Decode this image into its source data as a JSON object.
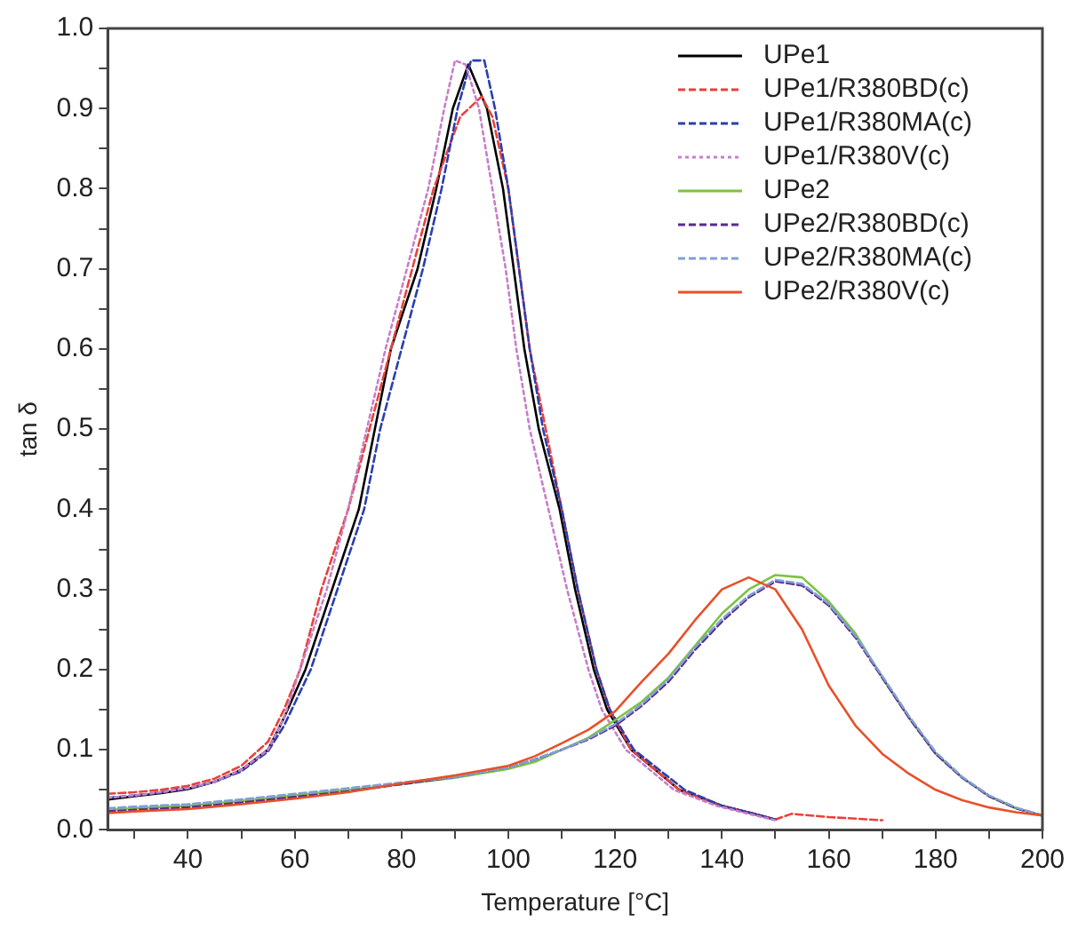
{
  "chart_data": {
    "type": "line",
    "xlabel": "Temperature [°C]",
    "ylabel": "tan δ",
    "xlim": [
      25,
      200
    ],
    "ylim": [
      0,
      1.0
    ],
    "xticks": [
      {
        "value": 30,
        "label": null
      },
      40,
      {
        "value": 50,
        "label": null
      },
      60,
      {
        "value": 70,
        "label": null
      },
      80,
      {
        "value": 90,
        "label": null
      },
      100,
      {
        "value": 110,
        "label": null
      },
      120,
      {
        "value": 130,
        "label": null
      },
      140,
      {
        "value": 150,
        "label": null
      },
      160,
      {
        "value": 170,
        "label": null
      },
      180,
      {
        "value": 190,
        "label": null
      },
      200
    ],
    "yticks": [
      {
        "value": 0,
        "label": "0.0"
      },
      {
        "value": 0.05,
        "label": null
      },
      0.1,
      {
        "value": 0.15,
        "label": null
      },
      0.2,
      {
        "value": 0.25,
        "label": null
      },
      0.3,
      {
        "value": 0.35,
        "label": null
      },
      0.4,
      {
        "value": 0.45,
        "label": null
      },
      0.5,
      {
        "value": 0.55,
        "label": null
      },
      0.6,
      {
        "value": 0.65,
        "label": null
      },
      0.7,
      {
        "value": 0.75,
        "label": null
      },
      0.8,
      {
        "value": 0.85,
        "label": null
      },
      0.9,
      {
        "value": 0.95,
        "label": null
      },
      {
        "value": 1,
        "label": "1.0"
      }
    ],
    "grid": false,
    "legend": "top right",
    "marker": "none",
    "series": [
      {
        "name": "UPe1",
        "color": "#000000",
        "line_style": "solid",
        "x": [
          25,
          30,
          35,
          40,
          45,
          50,
          55,
          58,
          62,
          67,
          72,
          75,
          78,
          83,
          86.5,
          89.6,
          92.5,
          96,
          99,
          101,
          103,
          105.7,
          109.6,
          112.5,
          116,
          118.5,
          123,
          132,
          140,
          146,
          150
        ],
        "values": [
          0.038,
          0.042,
          0.046,
          0.051,
          0.06,
          0.075,
          0.1,
          0.14,
          0.2,
          0.3,
          0.4,
          0.5,
          0.6,
          0.7,
          0.8,
          0.9,
          0.955,
          0.9,
          0.8,
          0.7,
          0.6,
          0.5,
          0.4,
          0.3,
          0.2,
          0.15,
          0.1,
          0.05,
          0.03,
          0.02,
          0.013
        ]
      },
      {
        "name": "UPe1/R380BD(c)",
        "color": "#e8413c",
        "line_style": "dashed",
        "x": [
          25,
          30,
          35,
          40,
          45,
          50,
          55,
          58,
          61,
          65,
          70,
          74,
          78,
          82,
          86,
          91,
          95,
          97,
          100,
          102,
          104,
          107,
          110,
          113,
          116.5,
          119,
          123,
          132,
          140,
          150,
          153,
          160,
          170
        ],
        "values": [
          0.045,
          0.047,
          0.05,
          0.055,
          0.064,
          0.08,
          0.11,
          0.15,
          0.2,
          0.3,
          0.4,
          0.5,
          0.6,
          0.7,
          0.8,
          0.89,
          0.915,
          0.89,
          0.8,
          0.7,
          0.6,
          0.5,
          0.4,
          0.3,
          0.2,
          0.15,
          0.1,
          0.05,
          0.03,
          0.013,
          0.02,
          0.016,
          0.012
        ]
      },
      {
        "name": "UPe1/R380MA(c)",
        "color": "#2b3fae",
        "line_style": "dashed",
        "x": [
          25,
          30,
          35,
          40,
          45,
          50,
          55,
          58,
          63,
          68,
          73,
          76,
          80,
          84,
          87.5,
          90.5,
          93,
          95.5,
          97.5,
          100,
          102,
          104,
          106.5,
          110,
          113,
          116.5,
          119,
          123.5,
          133,
          140,
          146,
          150
        ],
        "values": [
          0.04,
          0.043,
          0.047,
          0.052,
          0.06,
          0.073,
          0.098,
          0.13,
          0.2,
          0.3,
          0.4,
          0.5,
          0.6,
          0.7,
          0.8,
          0.9,
          0.96,
          0.96,
          0.9,
          0.8,
          0.7,
          0.6,
          0.5,
          0.4,
          0.3,
          0.2,
          0.15,
          0.1,
          0.05,
          0.03,
          0.02,
          0.013
        ]
      },
      {
        "name": "UPe1/R380V(c)",
        "color": "#c77fc7",
        "line_style": "dotted",
        "x": [
          25,
          30,
          35,
          40,
          45,
          50,
          55,
          58,
          61,
          66,
          70,
          73.5,
          77,
          81,
          85,
          88,
          90,
          92,
          94.5,
          97,
          99.5,
          101.5,
          104,
          107.5,
          111,
          115,
          117.5,
          122,
          131,
          139,
          145,
          150
        ],
        "values": [
          0.04,
          0.043,
          0.047,
          0.052,
          0.06,
          0.075,
          0.1,
          0.14,
          0.2,
          0.3,
          0.4,
          0.5,
          0.6,
          0.7,
          0.8,
          0.9,
          0.96,
          0.955,
          0.9,
          0.8,
          0.7,
          0.6,
          0.5,
          0.4,
          0.3,
          0.2,
          0.15,
          0.1,
          0.05,
          0.03,
          0.02,
          0.012
        ]
      },
      {
        "name": "UPe2",
        "color": "#7dc242",
        "line_style": "solid",
        "x": [
          25,
          30,
          40,
          50,
          60,
          70,
          80,
          90,
          100,
          105,
          110,
          115,
          120,
          125,
          130,
          135,
          140,
          145,
          150,
          155,
          160,
          165,
          170,
          175,
          180,
          185,
          190,
          195,
          200
        ],
        "values": [
          0.025,
          0.027,
          0.03,
          0.036,
          0.043,
          0.05,
          0.057,
          0.065,
          0.076,
          0.085,
          0.1,
          0.115,
          0.137,
          0.16,
          0.19,
          0.23,
          0.27,
          0.3,
          0.318,
          0.315,
          0.285,
          0.245,
          0.19,
          0.14,
          0.095,
          0.065,
          0.042,
          0.027,
          0.018
        ]
      },
      {
        "name": "UPe2/R380BD(c)",
        "color": "#5b2a8e",
        "line_style": "dashed",
        "x": [
          25,
          30,
          40,
          50,
          60,
          70,
          80,
          90,
          100,
          105,
          110,
          115,
          120,
          125,
          130,
          135,
          140,
          145,
          150,
          155,
          160,
          165,
          170,
          175,
          180,
          185,
          190,
          195,
          200
        ],
        "values": [
          0.023,
          0.025,
          0.028,
          0.034,
          0.041,
          0.048,
          0.057,
          0.066,
          0.078,
          0.088,
          0.1,
          0.113,
          0.13,
          0.155,
          0.185,
          0.225,
          0.26,
          0.29,
          0.31,
          0.305,
          0.28,
          0.24,
          0.19,
          0.14,
          0.095,
          0.065,
          0.042,
          0.027,
          0.018
        ]
      },
      {
        "name": "UPe2/R380MA(c)",
        "color": "#7f9fd8",
        "line_style": "dashed",
        "x": [
          25,
          30,
          40,
          50,
          60,
          70,
          80,
          90,
          100,
          105,
          110,
          115,
          120,
          125,
          130,
          135,
          140,
          145,
          150,
          155,
          160,
          165,
          170,
          175,
          180,
          185,
          190,
          195,
          200
        ],
        "values": [
          0.027,
          0.029,
          0.032,
          0.038,
          0.045,
          0.052,
          0.059,
          0.066,
          0.078,
          0.088,
          0.1,
          0.114,
          0.132,
          0.157,
          0.188,
          0.228,
          0.263,
          0.292,
          0.312,
          0.307,
          0.282,
          0.242,
          0.192,
          0.142,
          0.097,
          0.066,
          0.043,
          0.028,
          0.018
        ]
      },
      {
        "name": "UPe2/R380V(c)",
        "color": "#e8502a",
        "line_style": "solid",
        "x": [
          25,
          30,
          40,
          50,
          60,
          70,
          80,
          90,
          100,
          105,
          110,
          115,
          120,
          125,
          130,
          135,
          140,
          145,
          150,
          155,
          160,
          165,
          170,
          175,
          180,
          185,
          190,
          195,
          200
        ],
        "values": [
          0.021,
          0.023,
          0.026,
          0.032,
          0.039,
          0.047,
          0.058,
          0.068,
          0.08,
          0.092,
          0.108,
          0.125,
          0.148,
          0.185,
          0.22,
          0.262,
          0.3,
          0.315,
          0.3,
          0.25,
          0.18,
          0.13,
          0.095,
          0.07,
          0.05,
          0.037,
          0.028,
          0.022,
          0.018
        ]
      }
    ]
  }
}
